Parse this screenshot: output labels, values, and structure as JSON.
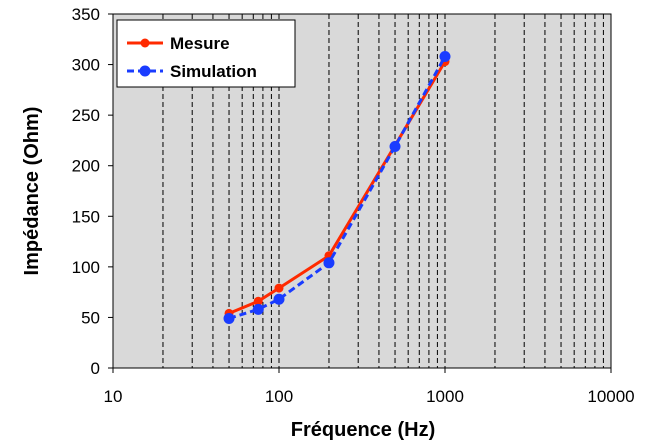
{
  "chart_data": {
    "type": "line",
    "title": "",
    "xlabel": "Fréquence (Hz)",
    "ylabel": "Impédance (Ohm)",
    "xscale": "log",
    "xlim": [
      10,
      10000
    ],
    "ylim": [
      0,
      350
    ],
    "x_ticks": [
      "10",
      "100",
      "1000",
      "10000"
    ],
    "y_ticks": [
      "0",
      "50",
      "100",
      "150",
      "200",
      "250",
      "300",
      "350"
    ],
    "grid": "vertical dashed minor and major",
    "legend_position": "top-left",
    "series": [
      {
        "name": "Mesure",
        "color": "#ff2a00",
        "line_style": "solid",
        "x": [
          50,
          75,
          100,
          200,
          500,
          1000
        ],
        "y": [
          54,
          66,
          79,
          111,
          220,
          303
        ]
      },
      {
        "name": "Simulation",
        "color": "#1a3cff",
        "line_style": "dashed",
        "x": [
          50,
          75,
          100,
          200,
          500,
          1000
        ],
        "y": [
          49,
          58,
          68,
          104,
          219,
          308
        ]
      }
    ]
  }
}
